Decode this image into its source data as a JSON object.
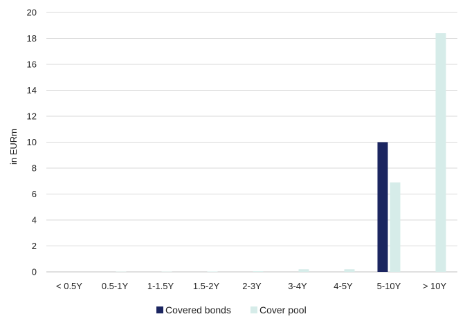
{
  "chart_data": {
    "type": "bar",
    "ylabel": "in EURm",
    "xlabel": "",
    "title": "",
    "ylim": [
      0,
      20
    ],
    "y_ticks": [
      0,
      2,
      4,
      6,
      8,
      10,
      12,
      14,
      16,
      18,
      20
    ],
    "grid": "horizontal",
    "legend_position": "bottom-center",
    "categories": [
      "< 0.5Y",
      "0.5-1Y",
      "1-1.5Y",
      "1.5-2Y",
      "2-3Y",
      "3-4Y",
      "4-5Y",
      "5-10Y",
      "> 10Y"
    ],
    "series": [
      {
        "name": "Covered bonds",
        "color": "#1b2560",
        "values": [
          0,
          0,
          0,
          0,
          0,
          0,
          0,
          10,
          0
        ]
      },
      {
        "name": "Cover pool",
        "color": "#d6ece9",
        "values": [
          0,
          0.02,
          0.02,
          0.03,
          0.05,
          0.2,
          0.2,
          6.9,
          18.4
        ]
      }
    ]
  }
}
